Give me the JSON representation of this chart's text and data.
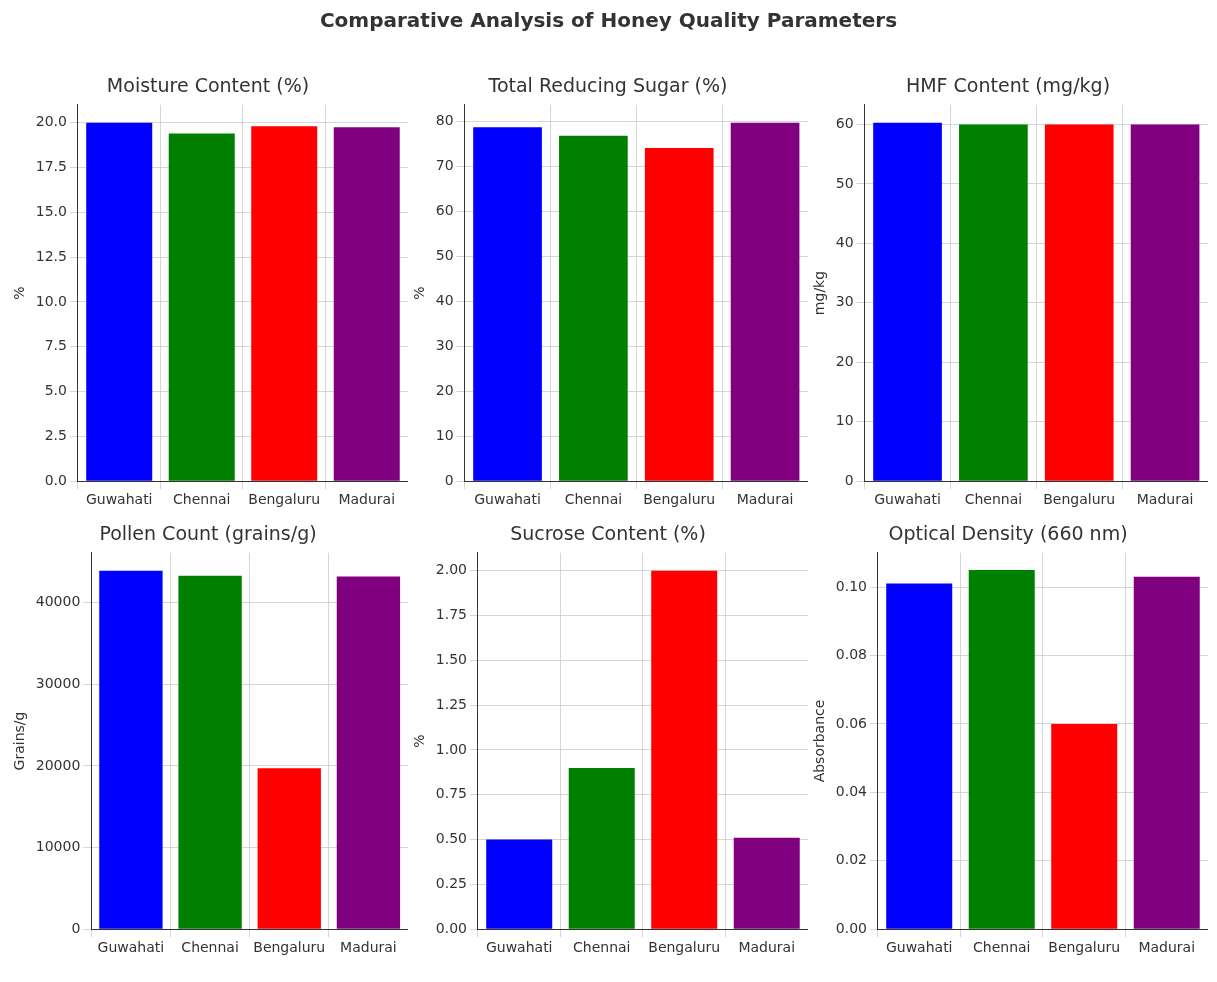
{
  "chart_data": [
    {
      "type": "bar",
      "title": "Moisture Content (%)",
      "ylabel": "%",
      "annotations": [
        "Comparative Analysis of Honey Quality Parameters"
      ],
      "categories": [
        "Guwahati",
        "Chennai",
        "Bengaluru",
        "Madurai"
      ],
      "values": [
        20.0,
        19.4,
        19.8,
        19.75
      ],
      "colors": [
        "#0000ff",
        "#008000",
        "#ff0000",
        "#800080"
      ],
      "ylim": [
        0,
        21
      ],
      "yticks": [
        {
          "value": 0,
          "label": "0.0"
        },
        {
          "value": 2.5,
          "label": "2.5"
        },
        {
          "value": 5,
          "label": "5.0"
        },
        {
          "value": 7.5,
          "label": "7.5"
        },
        {
          "value": 10,
          "label": "10.0"
        },
        {
          "value": 12.5,
          "label": "12.5"
        },
        {
          "value": 15,
          "label": "15.0"
        },
        {
          "value": 17.5,
          "label": "17.5"
        },
        {
          "value": 20,
          "label": "20.0"
        }
      ],
      "grid": true
    },
    {
      "type": "bar",
      "title": "Total Reducing Sugar (%)",
      "ylabel": "%",
      "categories": [
        "Guwahati",
        "Chennai",
        "Bengaluru",
        "Madurai"
      ],
      "values": [
        78.7,
        76.8,
        74.1,
        79.7
      ],
      "colors": [
        "#0000ff",
        "#008000",
        "#ff0000",
        "#800080"
      ],
      "ylim": [
        0,
        83.7
      ],
      "yticks": [
        0,
        10,
        20,
        30,
        40,
        50,
        60,
        70,
        80
      ],
      "grid": true
    },
    {
      "type": "bar",
      "title": "HMF Content (mg/kg)",
      "ylabel": "mg/kg",
      "categories": [
        "Guwahati",
        "Chennai",
        "Bengaluru",
        "Madurai"
      ],
      "values": [
        60.3,
        60,
        60,
        60
      ],
      "colors": [
        "#0000ff",
        "#008000",
        "#ff0000",
        "#800080"
      ],
      "ylim": [
        0,
        63.3
      ],
      "yticks": [
        0,
        10,
        20,
        30,
        40,
        50,
        60
      ],
      "grid": true
    },
    {
      "type": "bar",
      "title": "Pollen Count (grains/g)",
      "ylabel": "Grains/g",
      "categories": [
        "Guwahati",
        "Chennai",
        "Bengaluru",
        "Madurai"
      ],
      "values": [
        43900,
        43300,
        19700,
        43200
      ],
      "colors": [
        "#0000ff",
        "#008000",
        "#ff0000",
        "#800080"
      ],
      "ylim": [
        0,
        46100
      ],
      "yticks": [
        0,
        10000,
        20000,
        30000,
        40000
      ],
      "grid": true
    },
    {
      "type": "bar",
      "title": "Sucrose Content (%)",
      "ylabel": "%",
      "categories": [
        "Guwahati",
        "Chennai",
        "Bengaluru",
        "Madurai"
      ],
      "values": [
        0.5,
        0.9,
        2.0,
        0.51
      ],
      "colors": [
        "#0000ff",
        "#008000",
        "#ff0000",
        "#800080"
      ],
      "ylim": [
        0,
        2.1
      ],
      "yticks": [
        {
          "value": 0,
          "label": "0.00"
        },
        {
          "value": 0.25,
          "label": "0.25"
        },
        {
          "value": 0.5,
          "label": "0.50"
        },
        {
          "value": 0.75,
          "label": "0.75"
        },
        {
          "value": 1,
          "label": "1.00"
        },
        {
          "value": 1.25,
          "label": "1.25"
        },
        {
          "value": 1.5,
          "label": "1.50"
        },
        {
          "value": 1.75,
          "label": "1.75"
        },
        {
          "value": 2,
          "label": "2.00"
        }
      ],
      "grid": true
    },
    {
      "type": "bar",
      "title": "Optical Density (660 nm)",
      "ylabel": "Absorbance",
      "categories": [
        "Guwahati",
        "Chennai",
        "Bengaluru",
        "Madurai"
      ],
      "values": [
        0.101,
        0.105,
        0.06,
        0.103
      ],
      "colors": [
        "#0000ff",
        "#008000",
        "#ff0000",
        "#800080"
      ],
      "ylim": [
        0,
        0.11
      ],
      "yticks": [
        {
          "value": 0,
          "label": "0.00"
        },
        {
          "value": 0.02,
          "label": "0.02"
        },
        {
          "value": 0.04,
          "label": "0.04"
        },
        {
          "value": 0.06,
          "label": "0.06"
        },
        {
          "value": 0.08,
          "label": "0.08"
        },
        {
          "value": 0.1,
          "label": "0.10"
        }
      ],
      "grid": true
    }
  ]
}
